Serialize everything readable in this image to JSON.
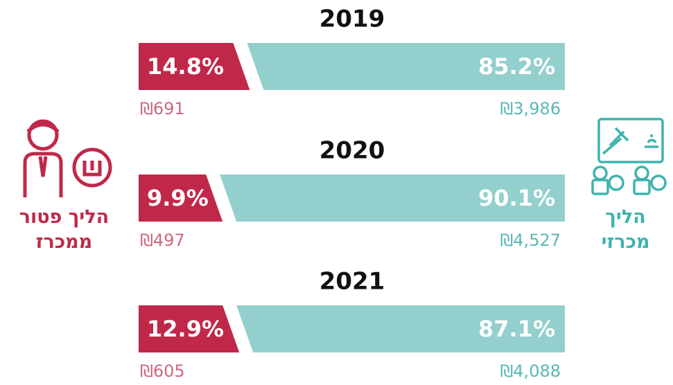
{
  "chart_data": {
    "type": "stacked-bar-horizontal",
    "categories": [
      "2019",
      "2020",
      "2021"
    ],
    "series": [
      {
        "name": "הליך פטור ממכרז",
        "color": "#c0284a",
        "values": [
          14.8,
          9.9,
          12.9
        ],
        "value_labels": [
          "14.8%",
          "9.9%",
          "12.9%"
        ],
        "amount_labels": [
          "₪691",
          "₪497",
          "₪605"
        ]
      },
      {
        "name": "הליך מכרזי",
        "color": "#93cfcd",
        "values": [
          85.2,
          90.1,
          87.1
        ],
        "value_labels": [
          "85.2%",
          "90.1%",
          "87.1%"
        ],
        "amount_labels": [
          "₪3,986",
          "₪4,527",
          "₪4,088"
        ]
      }
    ]
  }
}
